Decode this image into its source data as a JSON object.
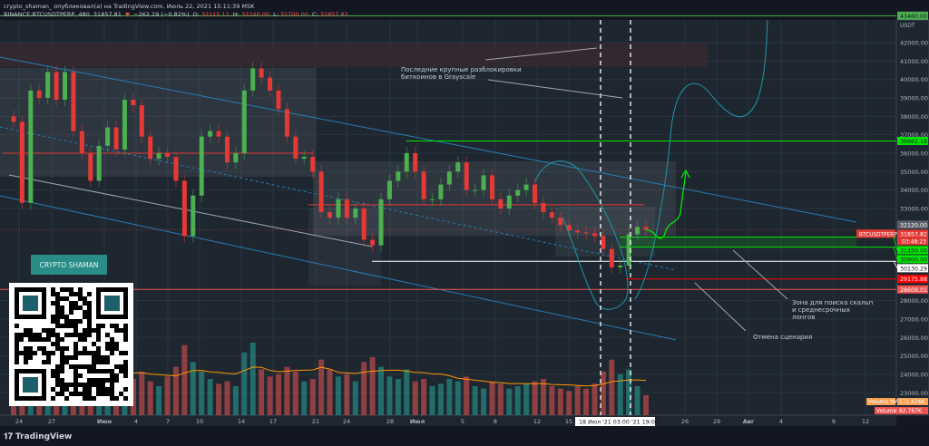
{
  "header": {
    "line1": "crypto_shaman_ опубликовал(а) на TradingView.com, Июль 22, 2021 15:11:39 MSK",
    "symbol": "BINANCE:BTCUSDTPERP, 480",
    "last": "31857.81",
    "change": "−262.19 (−0.82%)",
    "o_label": "O:",
    "o": "32115.11",
    "h_label": "H:",
    "h": "32240.00",
    "l_label": "L:",
    "l": "31700.00",
    "c_label": "C:",
    "c": "31857.82"
  },
  "brand_button": "CRYPTO SHAMAN",
  "footer_logo": "TradingView",
  "annotations": {
    "grayscale": "Последние крупные разблокировки\nбиткоинов в Grayscale",
    "zone": "Зона для поиска скальп\nи среднесрочных\nлонгов",
    "cancel": "Отмена сценария"
  },
  "colors": {
    "up": "#4caf50",
    "down": "#e53935",
    "bg": "#1e2730",
    "channel": "#2a7bb0",
    "curve": "#2196a8",
    "projection": "#00e600",
    "volume_ma": "#ff9800"
  },
  "chart_data": {
    "type": "candlestick",
    "timeframe": "480",
    "currency_label": "USDT",
    "ylim": [
      22500,
      43900
    ],
    "grid": true,
    "y_ticks": [
      42000,
      41000,
      40000,
      39000,
      38000,
      37000,
      36000,
      35000,
      34000,
      33000,
      28000,
      27000,
      26000,
      25000,
      24000,
      23000
    ],
    "x_ticks": [
      "24",
      "27",
      "Июн",
      "4",
      "7",
      "10",
      "14",
      "17",
      "21",
      "24",
      "28",
      "Июл",
      "5",
      "8",
      "12",
      "15",
      "26",
      "29",
      "Авг",
      "4",
      "9",
      "12"
    ],
    "crosshair_time_labels": "18 Июл '21   03:00   '21   19:00",
    "closes": [
      37700,
      33300,
      39400,
      39000,
      40400,
      38900,
      40400,
      37200,
      36000,
      34500,
      36400,
      37400,
      36200,
      38900,
      38600,
      36900,
      35700,
      36000,
      35800,
      34500,
      31500,
      33700,
      36900,
      37200,
      36900,
      35500,
      36000,
      39400,
      40600,
      40100,
      39400,
      38400,
      36900,
      35700,
      35800,
      35000,
      32800,
      32500,
      33500,
      32500,
      33000,
      31300,
      31000,
      33500,
      34500,
      35000,
      36000,
      35000,
      33500,
      33500,
      34300,
      35000,
      35500,
      34000,
      34000,
      34800,
      33500,
      33000,
      33700,
      34000,
      34300,
      33300,
      32800,
      32500,
      32100,
      31800,
      31700,
      31650,
      31500,
      30800,
      29800,
      29900,
      31600,
      32000,
      31858
    ],
    "volumes_k": [
      150,
      240,
      210,
      180,
      260,
      170,
      200,
      140,
      190,
      230,
      160,
      130,
      170,
      210,
      150,
      180,
      140,
      120,
      160,
      200,
      290,
      220,
      180,
      150,
      130,
      140,
      120,
      260,
      300,
      190,
      160,
      170,
      200,
      180,
      140,
      150,
      230,
      190,
      160,
      170,
      140,
      220,
      240,
      200,
      160,
      150,
      190,
      140,
      150,
      120,
      130,
      150,
      140,
      160,
      120,
      110,
      140,
      130,
      110,
      120,
      130,
      140,
      150,
      120,
      110,
      100,
      120,
      110,
      130,
      180,
      230,
      170,
      190,
      120,
      83
    ],
    "price_labels": [
      {
        "label": "43460.00",
        "price": 43460,
        "color": "#4caf50"
      },
      {
        "label": "36662.18",
        "price": 36662.18,
        "color": "#00e600"
      },
      {
        "label": "32120.00",
        "price": 32120,
        "color": "#5d606b"
      },
      {
        "label": "31857.82",
        "price": 31857.82,
        "color": "#e53935",
        "tag": "BTCUSDTPERP",
        "countdown": "03:48:23"
      },
      {
        "label": "31450.00",
        "price": 31450,
        "color": "#00e600"
      },
      {
        "label": "30900.00",
        "price": 30900,
        "color": "#00e600"
      },
      {
        "label": "30130.29",
        "price": 30130.29,
        "color": "#ffffff"
      },
      {
        "label": "29175.88",
        "price": 29175.88,
        "color": "#ff0000"
      },
      {
        "label": "28608.01",
        "price": 28608.01,
        "color": "#ef5350"
      }
    ],
    "volume_ma": {
      "label": "Volume MA",
      "value": "171.676K"
    },
    "volume": {
      "label": "Volume",
      "value": "82.767K"
    }
  }
}
